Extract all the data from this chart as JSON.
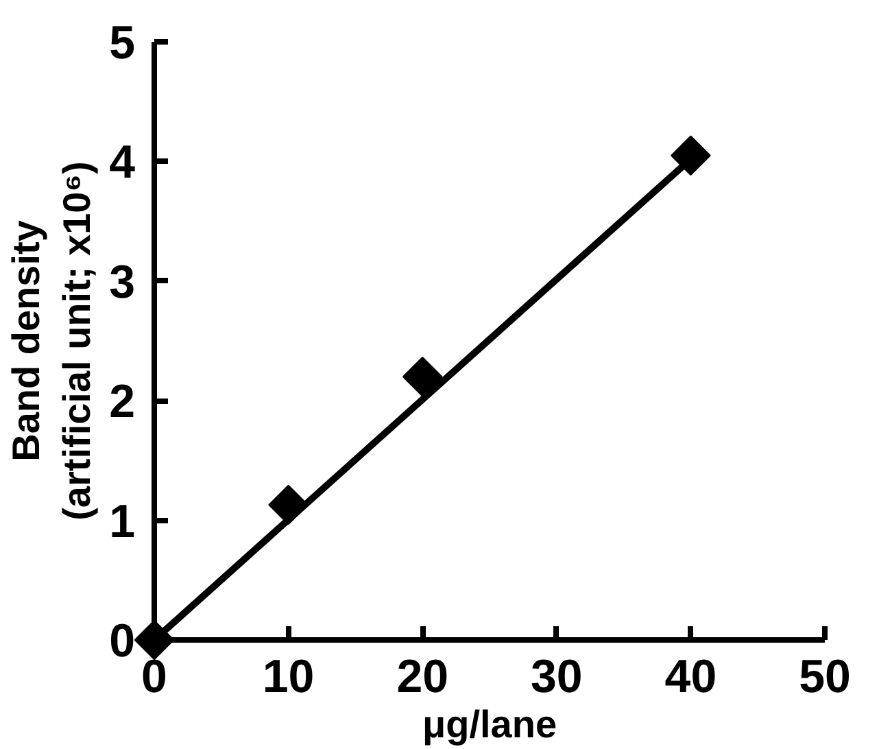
{
  "chart_data": {
    "type": "scatter",
    "xlabel": "μg/lane",
    "ylabel": "Band density\n(artificial unit; x10⁶)",
    "x": [
      0,
      10,
      20,
      40
    ],
    "series": [
      {
        "color": "#000000",
        "values": [
          0,
          1.13,
          2.2,
          4.05
        ],
        "marker": "diamond"
      },
      {
        "type": "line",
        "color": "#000000",
        "x": [
          0,
          40
        ],
        "values": [
          0,
          4.02
        ],
        "line_style": "solid"
      }
    ],
    "xlim": [
      0,
      50
    ],
    "ylim": [
      0,
      5
    ],
    "xticks": [
      0,
      10,
      20,
      30,
      40,
      50
    ],
    "yticks": [
      0,
      1,
      2,
      3,
      4,
      5
    ],
    "grid": false
  }
}
